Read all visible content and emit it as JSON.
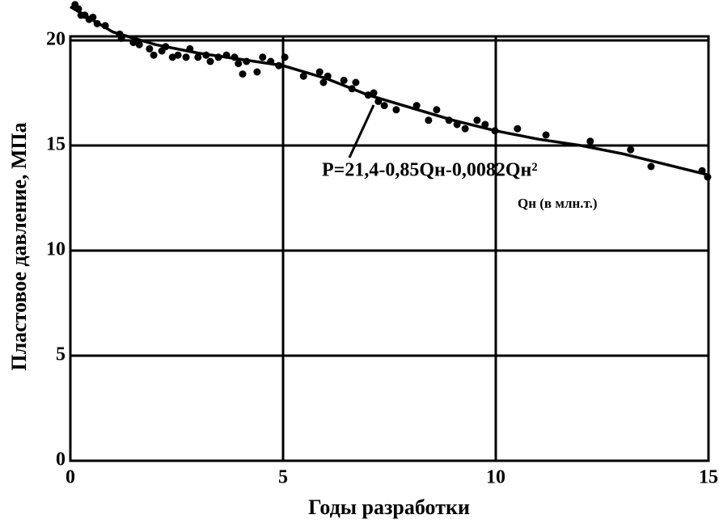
{
  "chart_data": {
    "type": "scatter",
    "xlabel": "Годы разработки",
    "ylabel": "Пластовое давление, МПа",
    "annotations": [
      "P=21,4-0,85Qн-0,0082Qн²",
      "Qн (в млн.т.)"
    ],
    "xlim": [
      0,
      15
    ],
    "ylim": [
      0,
      20
    ],
    "xticks": [
      0,
      5,
      10,
      15
    ],
    "yticks": [
      0,
      5,
      10,
      15,
      20
    ],
    "grid": true,
    "series": [
      {
        "type": "scatter",
        "color": "#000000",
        "x": [
          0.11,
          0.19,
          0.25,
          0.34,
          0.44,
          0.53,
          0.63,
          0.82,
          1.16,
          1.2,
          1.48,
          1.62,
          1.86,
          1.96,
          2.15,
          2.24,
          2.4,
          2.53,
          2.72,
          2.81,
          3.0,
          3.19,
          3.29,
          3.48,
          3.67,
          3.86,
          3.95,
          4.05,
          4.14,
          4.39,
          4.52,
          4.71,
          4.9,
          5.04,
          5.48,
          5.86,
          5.95,
          6.05,
          6.43,
          6.62,
          6.71,
          7.0,
          7.13,
          7.24,
          7.38,
          7.66,
          8.14,
          8.42,
          8.61,
          8.9,
          9.09,
          9.28,
          9.56,
          9.75,
          9.98,
          10.51,
          11.18,
          12.22,
          13.17,
          13.65,
          14.85,
          14.98
        ],
        "values": [
          21.7,
          21.5,
          21.2,
          21.2,
          21.0,
          21.1,
          20.8,
          20.7,
          20.3,
          20.1,
          19.9,
          19.8,
          19.6,
          19.3,
          19.5,
          19.7,
          19.2,
          19.3,
          19.2,
          19.6,
          19.2,
          19.3,
          19.0,
          19.2,
          19.3,
          19.2,
          18.9,
          18.4,
          19.0,
          18.5,
          19.2,
          19.0,
          18.8,
          19.2,
          18.3,
          18.5,
          18.0,
          18.3,
          18.1,
          17.7,
          18.0,
          17.4,
          17.5,
          17.1,
          16.9,
          16.7,
          16.9,
          16.2,
          16.7,
          16.2,
          16.0,
          15.8,
          16.2,
          16.0,
          15.7,
          15.8,
          15.5,
          15.2,
          14.8,
          14.0,
          13.8,
          13.5
        ]
      },
      {
        "type": "line",
        "color": "#000000",
        "x": [
          0,
          1,
          2,
          3,
          4,
          5,
          6,
          7,
          8,
          9,
          10,
          11,
          12,
          13,
          14,
          15
        ],
        "values": [
          21.6,
          20.4,
          19.8,
          19.4,
          19.1,
          18.8,
          18.2,
          17.4,
          16.8,
          16.2,
          15.7,
          15.3,
          15.0,
          14.6,
          14.1,
          13.6
        ]
      }
    ]
  }
}
